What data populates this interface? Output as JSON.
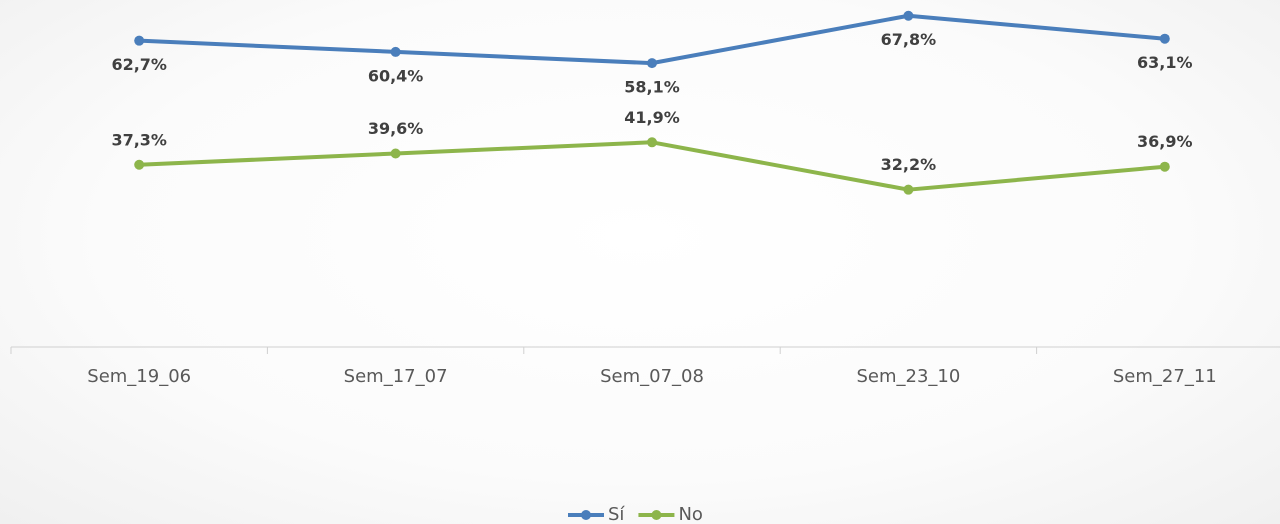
{
  "chart_data": {
    "type": "line",
    "categories": [
      "Sem_19_06",
      "Sem_17_07",
      "Sem_07_08",
      "Sem_23_10",
      "Sem_27_11"
    ],
    "series": [
      {
        "name": "Sí",
        "color": "#4a7ebb",
        "values": [
          62.7,
          60.4,
          58.1,
          67.8,
          63.1
        ],
        "value_labels": [
          "62,7%",
          "60,4%",
          "58,1%",
          "67,8%",
          "63,1%"
        ]
      },
      {
        "name": "No",
        "color": "#8db54b",
        "values": [
          37.3,
          39.6,
          41.9,
          32.2,
          36.9
        ],
        "value_labels": [
          "37,3%",
          "39,6%",
          "41,9%",
          "32,2%",
          "36,9%"
        ]
      }
    ],
    "ylim": [
      0,
      70
    ],
    "legend": "bottom"
  }
}
